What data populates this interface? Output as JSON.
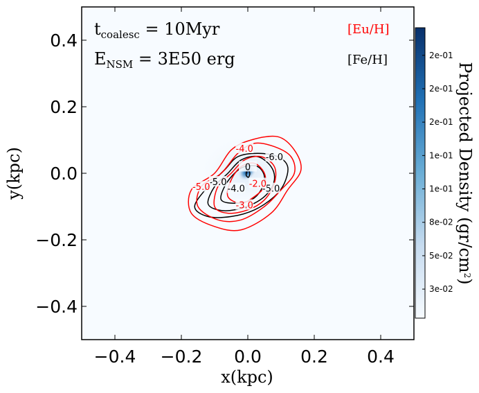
{
  "chart_data": {
    "type": "heatmap",
    "title": "",
    "xlabel": "x(kpc)",
    "ylabel": "y(kpc)",
    "xlim": [
      -0.5,
      0.5
    ],
    "ylim": [
      -0.5,
      0.5
    ],
    "xticks": [
      -0.4,
      -0.2,
      0.0,
      0.2,
      0.4
    ],
    "xtick_labels": [
      "−0.4",
      "−0.2",
      "0.0",
      "0.2",
      "0.4"
    ],
    "yticks": [
      0.4,
      0.2,
      0.0,
      -0.2,
      -0.4
    ],
    "ytick_labels": [
      "0.4",
      "0.2",
      "0.0",
      "−0.2",
      "−0.4"
    ],
    "annotations": {
      "t_coalesc": "t_coalesc = 10Myr",
      "E_NSM": "E_NSM = 3E50 erg",
      "t_main": "t",
      "t_sub": "coalesc",
      "t_value": " = 10Myr",
      "E_main": "E",
      "E_sub": "NSM",
      "E_value": " = 3E50 erg"
    },
    "legend": [
      {
        "label": "[Eu/H]",
        "color": "#ff0000"
      },
      {
        "label": "[Fe/H]",
        "color": "#000000"
      }
    ],
    "colorbar": {
      "label": "Projected Density (gr/cm^2)",
      "label_main": "Projected Density (gr/cm",
      "label_sup": "2",
      "label_end": ")",
      "tick_labels": [
        "2e-01",
        "2e-01",
        "2e-01",
        "1e-01",
        "1e-01",
        "8e-02",
        "5e-02",
        "3e-02"
      ],
      "tick_fractions": [
        0.905,
        0.79,
        0.675,
        0.56,
        0.445,
        0.33,
        0.215,
        0.1
      ],
      "color_low": "#f7fbff",
      "color_high": "#08306b"
    },
    "density_peak": {
      "x": 0.0,
      "y": 0.0
    },
    "contour_labels": {
      "feh": [
        {
          "text": "-6.0",
          "x": 0.08,
          "y": 0.05
        },
        {
          "text": "-5.0",
          "x": -0.09,
          "y": -0.025
        },
        {
          "text": "-5.0",
          "x": 0.07,
          "y": -0.045
        },
        {
          "text": "-4.0",
          "x": -0.035,
          "y": -0.045
        },
        {
          "text": "0",
          "x": 0.0,
          "y": 0.02
        }
      ],
      "euh": [
        {
          "text": "-4.0",
          "x": -0.01,
          "y": 0.075
        },
        {
          "text": "-5.0",
          "x": -0.14,
          "y": -0.04
        },
        {
          "text": "-2.0",
          "x": 0.03,
          "y": -0.03
        },
        {
          "text": "-3.0",
          "x": -0.01,
          "y": -0.095
        }
      ]
    },
    "contours": {
      "euh": [
        {
          "level": -5.0,
          "points": [
            [
              -0.17,
              -0.12
            ],
            [
              -0.17,
              -0.05
            ],
            [
              -0.1,
              0.0
            ],
            [
              -0.05,
              0.07
            ],
            [
              0.01,
              0.1
            ],
            [
              0.09,
              0.11
            ],
            [
              0.14,
              0.07
            ],
            [
              0.16,
              0.01
            ],
            [
              0.12,
              -0.05
            ],
            [
              0.07,
              -0.12
            ],
            [
              -0.02,
              -0.17
            ],
            [
              -0.1,
              -0.16
            ]
          ]
        },
        {
          "level": -4.0,
          "points": [
            [
              -0.15,
              -0.1
            ],
            [
              -0.14,
              -0.04
            ],
            [
              -0.08,
              0.0
            ],
            [
              -0.03,
              0.06
            ],
            [
              0.02,
              0.09
            ],
            [
              0.08,
              0.08
            ],
            [
              0.13,
              0.05
            ],
            [
              0.14,
              0.0
            ],
            [
              0.1,
              -0.05
            ],
            [
              0.05,
              -0.1
            ],
            [
              -0.02,
              -0.14
            ],
            [
              -0.09,
              -0.14
            ]
          ]
        },
        {
          "level": -3.0,
          "points": [
            [
              -0.1,
              -0.1
            ],
            [
              -0.09,
              -0.04
            ],
            [
              -0.05,
              0.0
            ],
            [
              -0.01,
              0.04
            ],
            [
              0.04,
              0.05
            ],
            [
              0.08,
              0.02
            ],
            [
              0.08,
              -0.03
            ],
            [
              0.05,
              -0.08
            ],
            [
              0.0,
              -0.11
            ],
            [
              -0.06,
              -0.12
            ]
          ]
        },
        {
          "level": -2.0,
          "points": [
            [
              -0.06,
              -0.07
            ],
            [
              -0.05,
              -0.02
            ],
            [
              -0.02,
              0.02
            ],
            [
              0.02,
              0.03
            ],
            [
              0.05,
              0.0
            ],
            [
              0.05,
              -0.04
            ],
            [
              0.02,
              -0.07
            ],
            [
              -0.02,
              -0.09
            ]
          ]
        }
      ],
      "feh": [
        {
          "level": -6.0,
          "points": [
            [
              -0.16,
              -0.1
            ],
            [
              -0.12,
              -0.04
            ],
            [
              -0.07,
              0.01
            ],
            [
              -0.03,
              0.05
            ],
            [
              0.03,
              0.06
            ],
            [
              0.09,
              0.05
            ],
            [
              0.12,
              0.02
            ],
            [
              0.11,
              -0.03
            ],
            [
              0.08,
              -0.07
            ],
            [
              0.02,
              -0.11
            ],
            [
              -0.05,
              -0.13
            ],
            [
              -0.12,
              -0.13
            ]
          ]
        },
        {
          "level": -5.0,
          "points": [
            [
              -0.12,
              -0.09
            ],
            [
              -0.1,
              -0.04
            ],
            [
              -0.06,
              0.0
            ],
            [
              -0.02,
              0.04
            ],
            [
              0.03,
              0.05
            ],
            [
              0.07,
              0.02
            ],
            [
              0.08,
              -0.02
            ],
            [
              0.06,
              -0.06
            ],
            [
              0.02,
              -0.09
            ],
            [
              -0.04,
              -0.11
            ],
            [
              -0.09,
              -0.11
            ]
          ]
        },
        {
          "level": -4.0,
          "points": [
            [
              -0.08,
              -0.08
            ],
            [
              -0.07,
              -0.04
            ],
            [
              -0.04,
              0.0
            ],
            [
              -0.01,
              0.02
            ],
            [
              0.03,
              0.02
            ],
            [
              0.05,
              -0.01
            ],
            [
              0.04,
              -0.05
            ],
            [
              0.01,
              -0.08
            ],
            [
              -0.04,
              -0.09
            ]
          ]
        },
        {
          "level": 0.0,
          "points": [
            [
              -0.005,
              -0.005
            ],
            [
              0.0,
              0.012
            ],
            [
              0.006,
              0.0
            ],
            [
              0.002,
              -0.012
            ]
          ]
        }
      ]
    }
  }
}
